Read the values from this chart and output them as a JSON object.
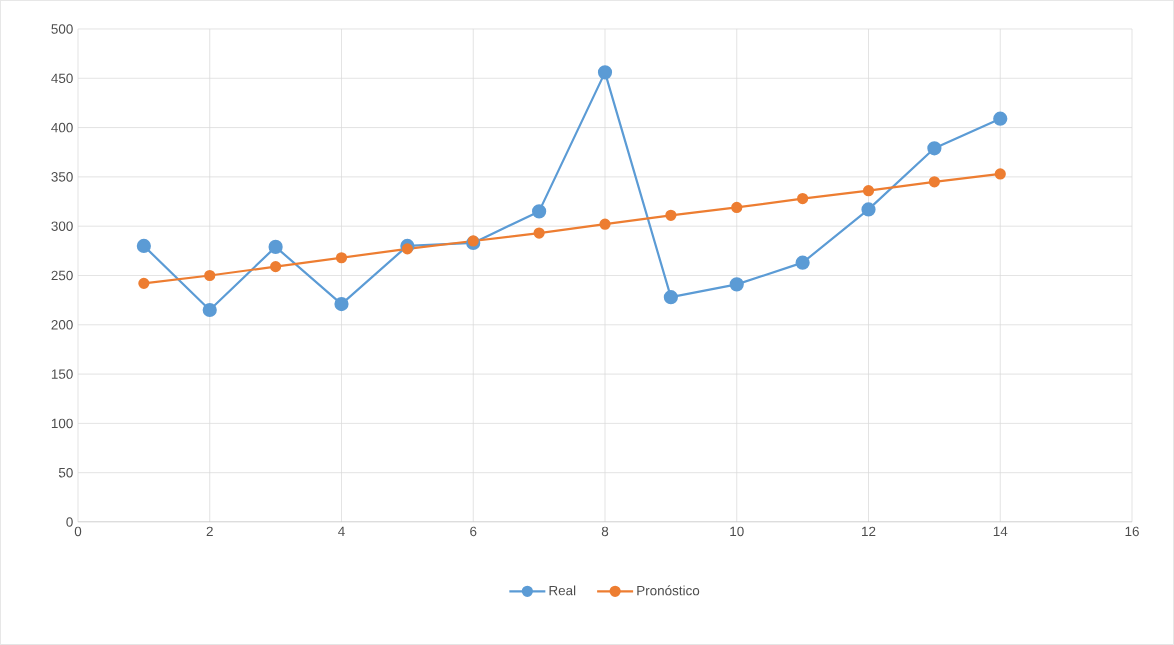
{
  "chart_data": {
    "type": "line",
    "x": [
      1,
      2,
      3,
      4,
      5,
      6,
      7,
      8,
      9,
      10,
      11,
      12,
      13,
      14
    ],
    "series": [
      {
        "name": "Real",
        "color": "#5b9bd5",
        "values": [
          280,
          215,
          279,
          221,
          280,
          283,
          315,
          456,
          228,
          241,
          263,
          317,
          379,
          409
        ]
      },
      {
        "name": "Pronóstico",
        "color": "#ed7d31",
        "values": [
          242,
          250,
          259,
          268,
          277,
          285,
          293,
          302,
          311,
          319,
          328,
          336,
          345,
          353
        ]
      }
    ],
    "xlim": [
      0,
      16
    ],
    "ylim": [
      0,
      500
    ],
    "xticks": [
      0,
      2,
      4,
      6,
      8,
      10,
      12,
      14,
      16
    ],
    "yticks": [
      0,
      50,
      100,
      150,
      200,
      250,
      300,
      350,
      400,
      450,
      500
    ],
    "grid": true,
    "legend": "bottom",
    "marker": "circle",
    "line_style": "solid"
  }
}
